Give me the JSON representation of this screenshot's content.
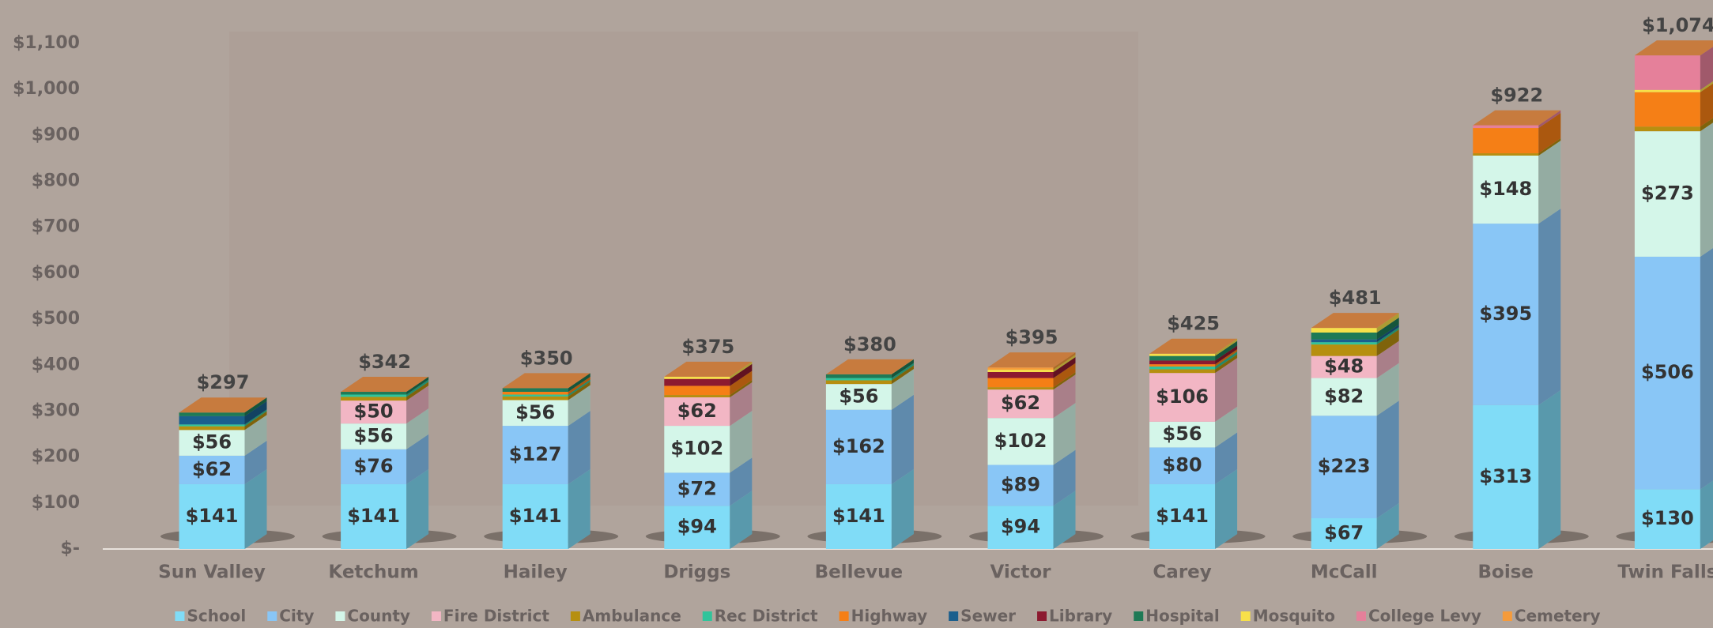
{
  "chart_data": {
    "type": "stacked-bar-3d",
    "categories": [
      "Sun Valley",
      "Ketchum",
      "Hailey",
      "Driggs",
      "Bellevue",
      "Victor",
      "Carey",
      "McCall",
      "Boise",
      "Twin Falls"
    ],
    "series": [
      {
        "name": "School",
        "color": "#80dcf7",
        "values": [
          141,
          141,
          141,
          94,
          141,
          94,
          141,
          67,
          313,
          130
        ],
        "value_labels": [
          "$141",
          "$141",
          "$141",
          "$94",
          "$141",
          "$94",
          "$141",
          "$67",
          "$313",
          "$130"
        ]
      },
      {
        "name": "City",
        "color": "#89c6f6",
        "values": [
          62,
          76,
          127,
          72,
          162,
          89,
          80,
          223,
          395,
          506
        ],
        "value_labels": [
          "$62",
          "$76",
          "$127",
          "$72",
          "$162",
          "$89",
          "$80",
          "$223",
          "$395",
          "$506"
        ]
      },
      {
        "name": "County",
        "color": "#d4f6e9",
        "values": [
          56,
          56,
          56,
          102,
          56,
          102,
          56,
          82,
          148,
          273
        ],
        "value_labels": [
          "$56",
          "$56",
          "$56",
          "$102",
          "$56",
          "$102",
          "$56",
          "$82",
          "$148",
          "$273"
        ]
      },
      {
        "name": "Fire District",
        "color": "#f2b6c4",
        "values": [
          0,
          50,
          0,
          62,
          0,
          62,
          106,
          48,
          0,
          0
        ],
        "value_labels": [
          null,
          "$50",
          null,
          "$62",
          null,
          "$62",
          "$106",
          "$48",
          null,
          null
        ]
      },
      {
        "name": "Ambulance",
        "color": "#b68f10",
        "values": [
          8,
          8,
          8,
          5,
          8,
          5,
          8,
          25,
          5,
          10
        ]
      },
      {
        "name": "Rec District",
        "color": "#30c49b",
        "values": [
          4,
          5,
          4,
          0,
          5,
          0,
          6,
          5,
          0,
          0
        ]
      },
      {
        "name": "Highway",
        "color": "#f57f16",
        "values": [
          0,
          0,
          6,
          20,
          0,
          20,
          5,
          0,
          55,
          75
        ]
      },
      {
        "name": "Sewer",
        "color": "#1b5f8d",
        "values": [
          18,
          0,
          0,
          0,
          0,
          0,
          0,
          6,
          0,
          0
        ]
      },
      {
        "name": "Library",
        "color": "#8c1a30",
        "values": [
          0,
          0,
          0,
          15,
          0,
          13,
          8,
          0,
          0,
          0
        ]
      },
      {
        "name": "Hospital",
        "color": "#1f7a56",
        "values": [
          8,
          6,
          8,
          0,
          8,
          0,
          10,
          15,
          0,
          0
        ]
      },
      {
        "name": "Mosquito",
        "color": "#f7e04a",
        "values": [
          0,
          0,
          0,
          5,
          0,
          5,
          5,
          10,
          0,
          5
        ]
      },
      {
        "name": "College Levy",
        "color": "#e5809a",
        "values": [
          0,
          0,
          0,
          0,
          0,
          0,
          0,
          0,
          6,
          75
        ]
      },
      {
        "name": "Cemetery",
        "color": "#f59b3b",
        "values": [
          0,
          0,
          0,
          0,
          0,
          5,
          0,
          0,
          0,
          0
        ]
      }
    ],
    "totals": [
      297,
      342,
      350,
      375,
      380,
      395,
      425,
      481,
      922,
      1074
    ],
    "total_labels": [
      "$297",
      "$342",
      "$350",
      "$375",
      "$380",
      "$395",
      "$425",
      "$481",
      "$922",
      "$1,074"
    ],
    "ylim": [
      0,
      1100
    ],
    "yticks": [
      {
        "value": 0,
        "label": "$-"
      },
      {
        "value": 100,
        "label": "$100"
      },
      {
        "value": 200,
        "label": "$200"
      },
      {
        "value": 300,
        "label": "$300"
      },
      {
        "value": 400,
        "label": "$400"
      },
      {
        "value": 500,
        "label": "$500"
      },
      {
        "value": 600,
        "label": "$600"
      },
      {
        "value": 700,
        "label": "$700"
      },
      {
        "value": 800,
        "label": "$800"
      },
      {
        "value": 900,
        "label": "$900"
      },
      {
        "value": 1000,
        "label": "$1,000"
      },
      {
        "value": 1100,
        "label": "$1,100"
      }
    ],
    "legend": "bottom"
  }
}
